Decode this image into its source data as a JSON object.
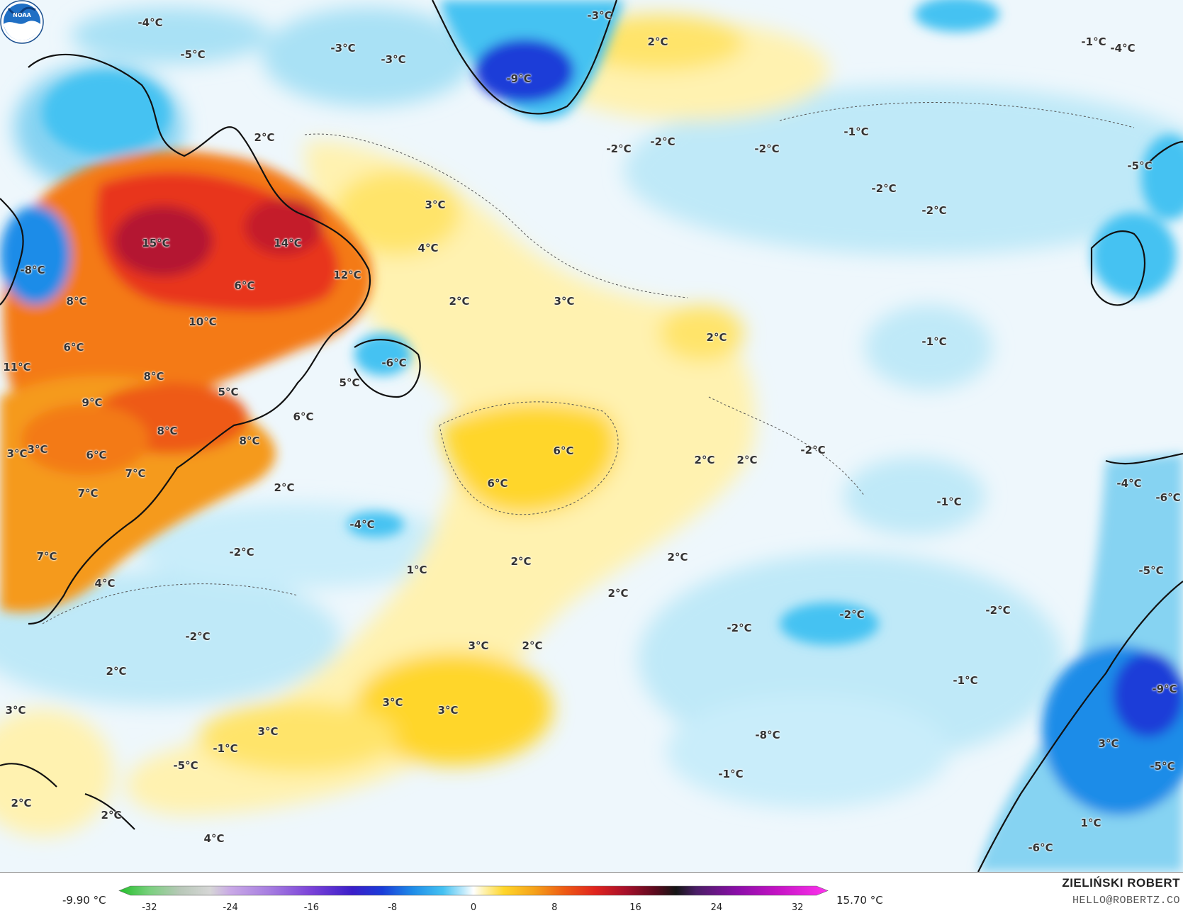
{
  "map": {
    "labels": [
      {
        "text": "-4°C"
      },
      {
        "text": "-5°C"
      },
      {
        "text": "-3°C"
      },
      {
        "text": "-3°C"
      },
      {
        "text": "-9°C"
      },
      {
        "text": "-3°C"
      },
      {
        "text": "2°C"
      },
      {
        "text": "-1°C"
      },
      {
        "text": "-4°C"
      },
      {
        "text": "2°C"
      },
      {
        "text": "-2°C"
      },
      {
        "text": "-2°C"
      },
      {
        "text": "-2°C"
      },
      {
        "text": "-1°C"
      },
      {
        "text": "-5°C"
      },
      {
        "text": "-2°C"
      },
      {
        "text": "-2°C"
      },
      {
        "text": "3°C"
      },
      {
        "text": "4°C"
      },
      {
        "text": "15°C"
      },
      {
        "text": "14°C"
      },
      {
        "text": "-8°C"
      },
      {
        "text": "6°C"
      },
      {
        "text": "12°C"
      },
      {
        "text": "8°C"
      },
      {
        "text": "10°C"
      },
      {
        "text": "2°C"
      },
      {
        "text": "3°C"
      },
      {
        "text": "2°C"
      },
      {
        "text": "-1°C"
      },
      {
        "text": "6°C"
      },
      {
        "text": "11°C"
      },
      {
        "text": "8°C"
      },
      {
        "text": "-6°C"
      },
      {
        "text": "5°C"
      },
      {
        "text": "9°C"
      },
      {
        "text": "5°C"
      },
      {
        "text": "6°C"
      },
      {
        "text": "8°C"
      },
      {
        "text": "8°C"
      },
      {
        "text": "3°C"
      },
      {
        "text": "3°C"
      },
      {
        "text": "6°C"
      },
      {
        "text": "6°C"
      },
      {
        "text": "2°C"
      },
      {
        "text": "2°C"
      },
      {
        "text": "-2°C"
      },
      {
        "text": "7°C"
      },
      {
        "text": "2°C"
      },
      {
        "text": "6°C"
      },
      {
        "text": "7°C"
      },
      {
        "text": "-4°C"
      },
      {
        "text": "-1°C"
      },
      {
        "text": "-4°C"
      },
      {
        "text": "-6°C"
      },
      {
        "text": "-2°C"
      },
      {
        "text": "7°C"
      },
      {
        "text": "2°C"
      },
      {
        "text": "2°C"
      },
      {
        "text": "1°C"
      },
      {
        "text": "4°C"
      },
      {
        "text": "2°C"
      },
      {
        "text": "-2°C"
      },
      {
        "text": "-2°C"
      },
      {
        "text": "-5°C"
      },
      {
        "text": "-2°C"
      },
      {
        "text": "-2°C"
      },
      {
        "text": "3°C"
      },
      {
        "text": "2°C"
      },
      {
        "text": "-9°C"
      },
      {
        "text": "-1°C"
      },
      {
        "text": "2°C"
      },
      {
        "text": "3°C"
      },
      {
        "text": "3°C"
      },
      {
        "text": "3°C"
      },
      {
        "text": "3°C"
      },
      {
        "text": "-1°C"
      },
      {
        "text": "-8°C"
      },
      {
        "text": "3°C"
      },
      {
        "text": "-5°C"
      },
      {
        "text": "-1°C"
      },
      {
        "text": "2°C"
      },
      {
        "text": "2°C"
      },
      {
        "text": "-5°C"
      },
      {
        "text": "1°C"
      },
      {
        "text": "4°C"
      },
      {
        "text": "-6°C"
      }
    ]
  },
  "colorbar": {
    "min_label": "-9.90 °C",
    "max_label": "15.70 °C",
    "ticks": [
      "-32",
      "-24",
      "-16",
      "-8",
      "0",
      "8",
      "16",
      "24",
      "32"
    ],
    "range": [
      -35,
      35
    ],
    "stops": [
      {
        "v": -35,
        "c": "#22c02a"
      },
      {
        "v": -32,
        "c": "#7ad07e"
      },
      {
        "v": -29,
        "c": "#b8c8b8"
      },
      {
        "v": -26,
        "c": "#d6d6d6"
      },
      {
        "v": -24,
        "c": "#c9a9e6"
      },
      {
        "v": -20,
        "c": "#a57be0"
      },
      {
        "v": -16,
        "c": "#7a42d8"
      },
      {
        "v": -12,
        "c": "#3b1ec9"
      },
      {
        "v": -9,
        "c": "#1a3cd8"
      },
      {
        "v": -6,
        "c": "#1e8ce8"
      },
      {
        "v": -3,
        "c": "#45c2f2"
      },
      {
        "v": -1,
        "c": "#bde9fb"
      },
      {
        "v": 0,
        "c": "#ffffff"
      },
      {
        "v": 1,
        "c": "#fff2b0"
      },
      {
        "v": 3,
        "c": "#ffd62a"
      },
      {
        "v": 6,
        "c": "#f5a21a"
      },
      {
        "v": 9,
        "c": "#ee5a14"
      },
      {
        "v": 12,
        "c": "#e0241e"
      },
      {
        "v": 15,
        "c": "#a8102a"
      },
      {
        "v": 18,
        "c": "#5a0a1e"
      },
      {
        "v": 20,
        "c": "#151515"
      },
      {
        "v": 22,
        "c": "#4a1e66"
      },
      {
        "v": 26,
        "c": "#8a0ea8"
      },
      {
        "v": 30,
        "c": "#c413c4"
      },
      {
        "v": 35,
        "c": "#ff33ee"
      }
    ]
  },
  "logo": {
    "text": "NOAA"
  },
  "credit": {
    "name": "ZIELIŃSKI ROBERT",
    "email": "HELLO@ROBERTZ.CO"
  }
}
